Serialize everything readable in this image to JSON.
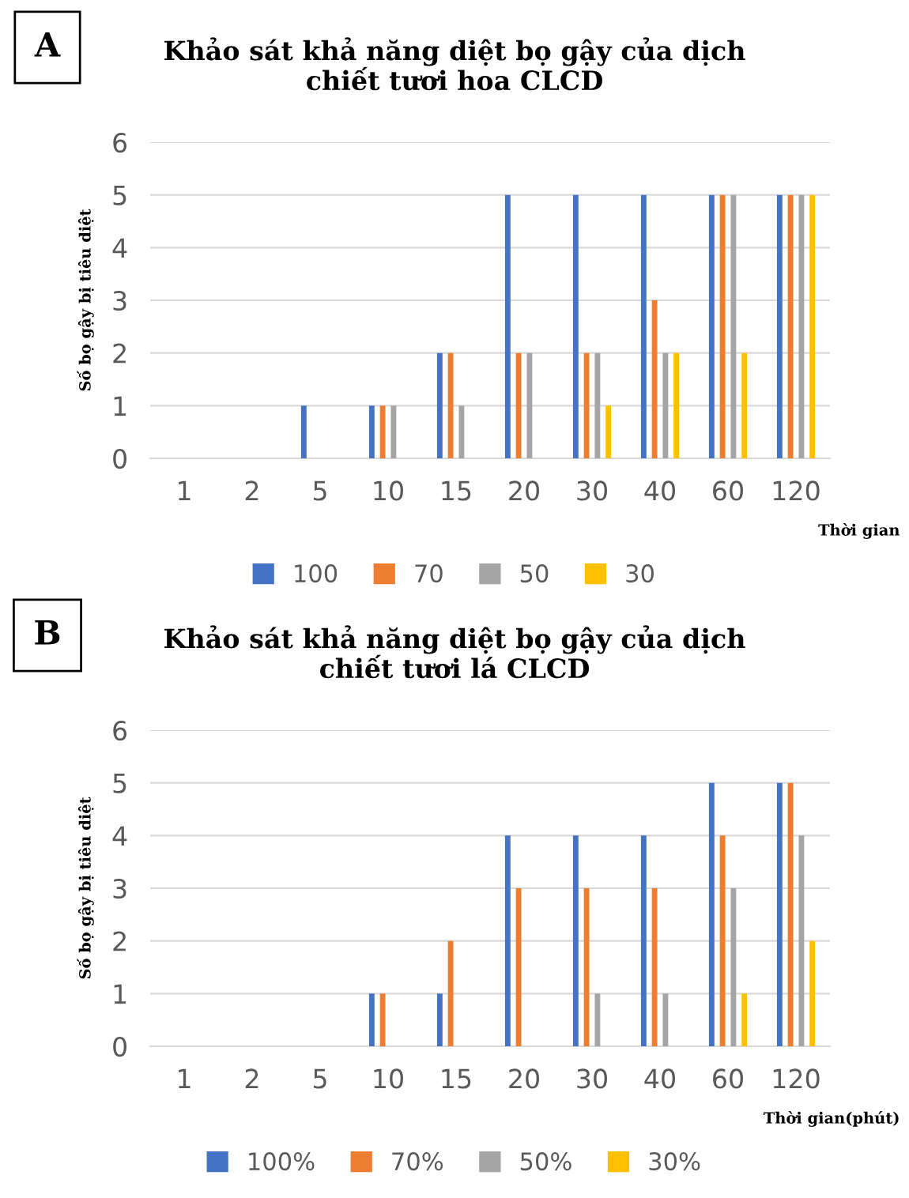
{
  "chart_data": [
    {
      "type": "bar",
      "title": "Khảo sát khả năng diệt bọ gậy của dịch\nchiết tươi hoa CLCD",
      "xlabel": "Thời gian",
      "ylabel": "Số bọ gậy bị tiêu diệt",
      "annotations": [
        "A"
      ],
      "categories": [
        "1",
        "2",
        "5",
        "10",
        "15",
        "20",
        "30",
        "40",
        "60",
        "120"
      ],
      "series": [
        {
          "name": "100",
          "color": "#4472c4",
          "values": [
            0,
            0,
            1,
            1,
            2,
            5,
            5,
            5,
            5,
            5
          ]
        },
        {
          "name": "70",
          "color": "#ed7d31",
          "values": [
            0,
            0,
            0,
            1,
            2,
            2,
            2,
            3,
            5,
            5
          ]
        },
        {
          "name": "50",
          "color": "#a5a5a5",
          "values": [
            0,
            0,
            0,
            1,
            1,
            2,
            2,
            2,
            5,
            5
          ]
        },
        {
          "name": "30",
          "color": "#ffc000",
          "values": [
            0,
            0,
            0,
            0,
            0,
            0,
            1,
            2,
            2,
            5
          ]
        }
      ],
      "ylim": [
        0,
        6
      ],
      "yticks": [
        0,
        1,
        2,
        3,
        4,
        5,
        6
      ],
      "grid": "y",
      "legend": "bottom"
    },
    {
      "type": "bar",
      "title": "Khảo sát khả năng diệt bọ gậy của dịch\nchiết tươi lá CLCD",
      "xlabel": "Thời gian(phút)",
      "ylabel": "Số bọ gậy bị tiêu diệt",
      "annotations": [
        "B"
      ],
      "categories": [
        "1",
        "2",
        "5",
        "10",
        "15",
        "20",
        "30",
        "40",
        "60",
        "120"
      ],
      "series": [
        {
          "name": "100%",
          "color": "#4472c4",
          "values": [
            0,
            0,
            0,
            1,
            1,
            4,
            4,
            4,
            5,
            5
          ]
        },
        {
          "name": "70%",
          "color": "#ed7d31",
          "values": [
            0,
            0,
            0,
            1,
            2,
            3,
            3,
            3,
            4,
            5
          ]
        },
        {
          "name": "50%",
          "color": "#a5a5a5",
          "values": [
            0,
            0,
            0,
            0,
            0,
            0,
            1,
            1,
            3,
            4
          ]
        },
        {
          "name": "30%",
          "color": "#ffc000",
          "values": [
            0,
            0,
            0,
            0,
            0,
            0,
            0,
            0,
            1,
            2
          ]
        }
      ],
      "ylim": [
        0,
        6
      ],
      "yticks": [
        0,
        1,
        2,
        3,
        4,
        5,
        6
      ],
      "grid": "y",
      "legend": "bottom"
    }
  ]
}
